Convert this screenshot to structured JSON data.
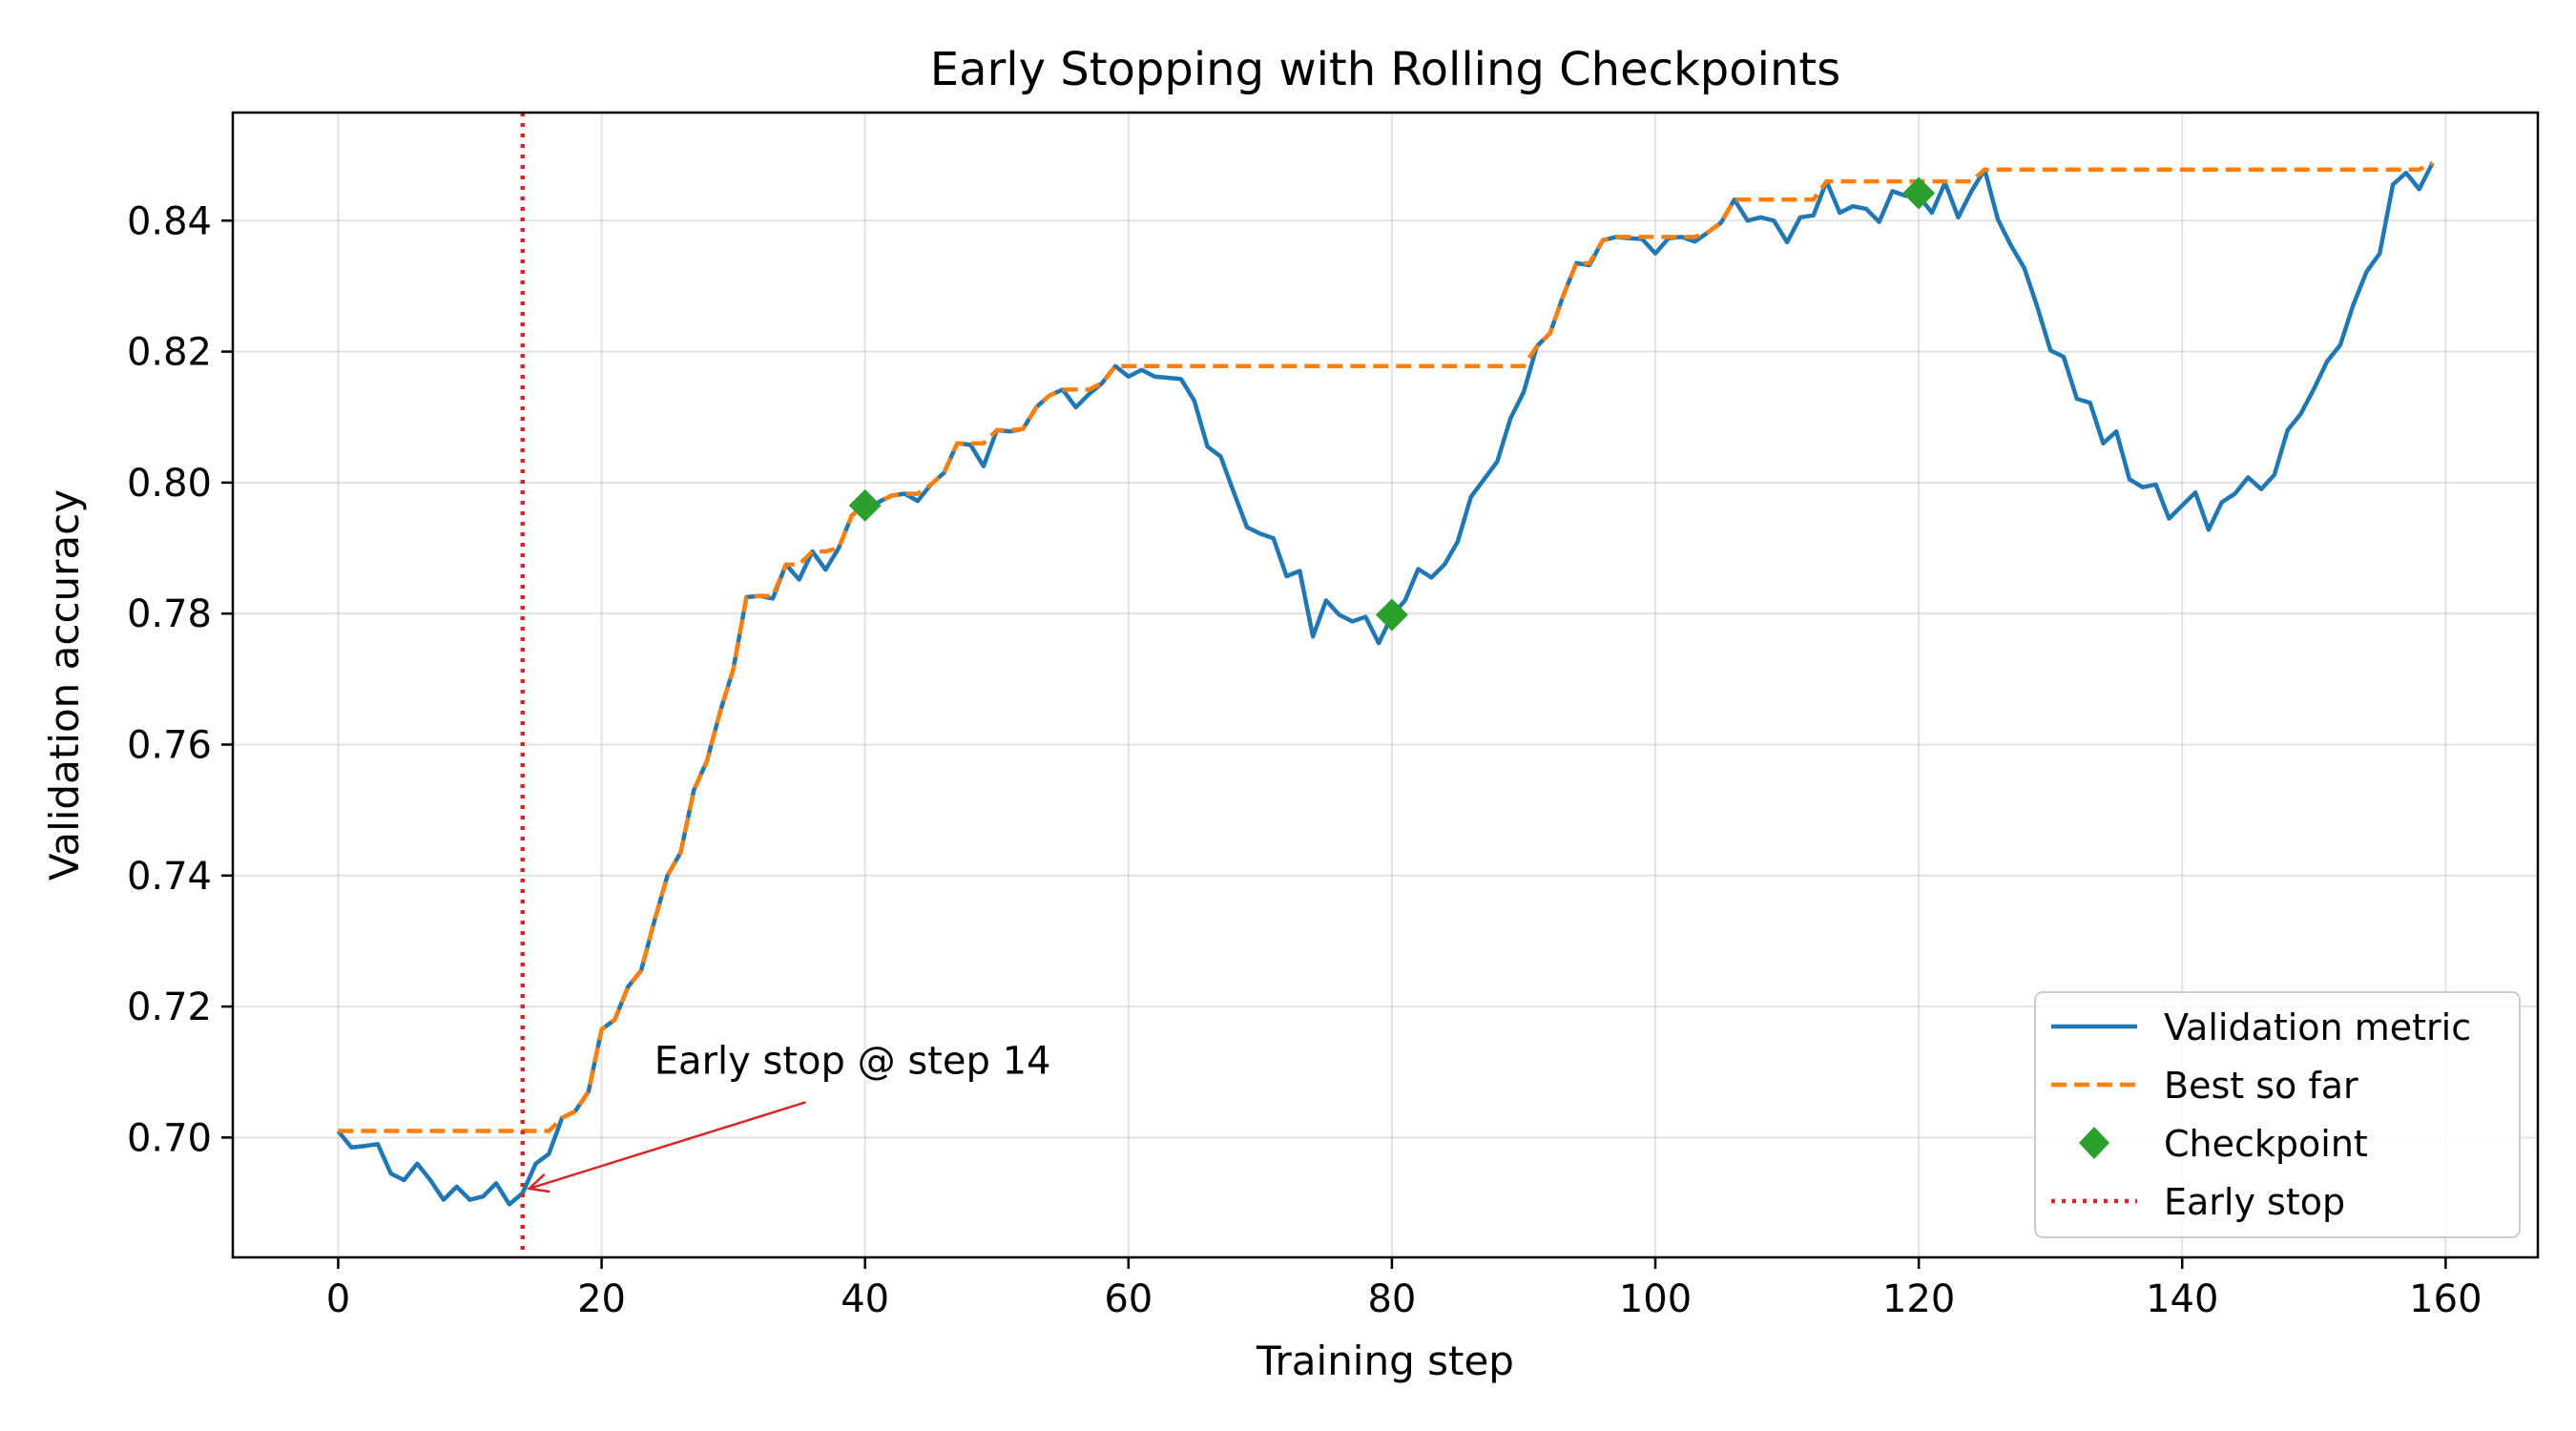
{
  "chart_data": {
    "type": "line",
    "title": "Early Stopping with Rolling Checkpoints",
    "xlabel": "Training step",
    "ylabel": "Validation accuracy",
    "xlim": [
      -8,
      167
    ],
    "ylim": [
      0.6817,
      0.8565
    ],
    "xticks": [
      0,
      20,
      40,
      60,
      80,
      100,
      120,
      140,
      160
    ],
    "yticks": [
      0.7,
      0.72,
      0.74,
      0.76,
      0.78,
      0.8,
      0.82,
      0.84
    ],
    "ytick_labels": [
      "0.70",
      "0.72",
      "0.74",
      "0.76",
      "0.78",
      "0.80",
      "0.82",
      "0.84"
    ],
    "grid": true,
    "legend_position": "lower-right",
    "colors": {
      "validation": "#1f77b4",
      "best": "#ff7f0e",
      "checkpoint": "#2ca02c",
      "early_stop": "#d62728"
    },
    "series": [
      {
        "name": "Validation metric",
        "style": "solid",
        "x": [
          0,
          1,
          2,
          3,
          4,
          5,
          6,
          7,
          8,
          9,
          10,
          11,
          12,
          13,
          14,
          15,
          16,
          17,
          18,
          19,
          20,
          21,
          22,
          23,
          24,
          25,
          26,
          27,
          28,
          29,
          30,
          31,
          32,
          33,
          34,
          35,
          36,
          37,
          38,
          39,
          40,
          41,
          42,
          43,
          44,
          45,
          46,
          47,
          48,
          49,
          50,
          51,
          52,
          53,
          54,
          55,
          56,
          57,
          58,
          59,
          60,
          61,
          62,
          63,
          64,
          65,
          66,
          67,
          68,
          69,
          70,
          71,
          72,
          73,
          74,
          75,
          76,
          77,
          78,
          79,
          80,
          81,
          82,
          83,
          84,
          85,
          86,
          87,
          88,
          89,
          90,
          91,
          92,
          93,
          94,
          95,
          96,
          97,
          98,
          99,
          100,
          101,
          102,
          103,
          104,
          105,
          106,
          107,
          108,
          109,
          110,
          111,
          112,
          113,
          114,
          115,
          116,
          117,
          118,
          119,
          120,
          121,
          122,
          123,
          124,
          125,
          126,
          127,
          128,
          129,
          130,
          131,
          132,
          133,
          134,
          135,
          136,
          137,
          138,
          139,
          140,
          141,
          142,
          143,
          144,
          145,
          146,
          147,
          148,
          149,
          150,
          151,
          152,
          153,
          154,
          155,
          156,
          157,
          158,
          159
        ],
        "y": [
          0.701,
          0.6985,
          0.6987,
          0.699,
          0.6945,
          0.6935,
          0.696,
          0.6935,
          0.6905,
          0.6925,
          0.6905,
          0.691,
          0.693,
          0.6898,
          0.6915,
          0.696,
          0.6975,
          0.703,
          0.704,
          0.707,
          0.7165,
          0.718,
          0.723,
          0.7255,
          0.733,
          0.74,
          0.7435,
          0.753,
          0.7575,
          0.765,
          0.7715,
          0.7825,
          0.7827,
          0.7823,
          0.7875,
          0.7852,
          0.7895,
          0.7867,
          0.79,
          0.795,
          0.7965,
          0.797,
          0.798,
          0.7983,
          0.7972,
          0.7997,
          0.8015,
          0.806,
          0.8058,
          0.8025,
          0.808,
          0.8078,
          0.8082,
          0.8115,
          0.8133,
          0.8142,
          0.8115,
          0.8135,
          0.8152,
          0.8178,
          0.8162,
          0.8172,
          0.8162,
          0.816,
          0.8158,
          0.8125,
          0.8055,
          0.804,
          0.7985,
          0.7932,
          0.7922,
          0.7915,
          0.7857,
          0.7865,
          0.7765,
          0.782,
          0.7798,
          0.7788,
          0.7795,
          0.7755,
          0.7797,
          0.782,
          0.7868,
          0.7855,
          0.7875,
          0.791,
          0.7978,
          0.8005,
          0.8032,
          0.8098,
          0.8138,
          0.8208,
          0.8228,
          0.8285,
          0.8335,
          0.8332,
          0.837,
          0.8375,
          0.8373,
          0.8372,
          0.835,
          0.8373,
          0.8375,
          0.8368,
          0.8382,
          0.8397,
          0.8432,
          0.84,
          0.8405,
          0.84,
          0.8367,
          0.8405,
          0.8408,
          0.846,
          0.8412,
          0.8422,
          0.8418,
          0.8398,
          0.8445,
          0.8438,
          0.8438,
          0.8412,
          0.8458,
          0.8405,
          0.8445,
          0.8478,
          0.8402,
          0.8362,
          0.8328,
          0.8268,
          0.8202,
          0.8192,
          0.8128,
          0.8122,
          0.806,
          0.8078,
          0.8005,
          0.7993,
          0.7997,
          0.7945,
          0.7965,
          0.7985,
          0.7928,
          0.797,
          0.7983,
          0.8008,
          0.799,
          0.8012,
          0.808,
          0.8105,
          0.8143,
          0.8185,
          0.821,
          0.8272,
          0.8322,
          0.835,
          0.8455,
          0.8473,
          0.8448,
          0.8488
        ]
      },
      {
        "name": "Best so far",
        "style": "dashed",
        "x": [
          0,
          1,
          2,
          3,
          4,
          5,
          6,
          7,
          8,
          9,
          10,
          11,
          12,
          13,
          14,
          15,
          16,
          17,
          18,
          19,
          20,
          21,
          22,
          23,
          24,
          25,
          26,
          27,
          28,
          29,
          30,
          31,
          32,
          33,
          34,
          35,
          36,
          37,
          38,
          39,
          40,
          41,
          42,
          43,
          44,
          45,
          46,
          47,
          48,
          49,
          50,
          51,
          52,
          53,
          54,
          55,
          56,
          57,
          58,
          59,
          60,
          61,
          62,
          63,
          64,
          65,
          66,
          67,
          68,
          69,
          70,
          71,
          72,
          73,
          74,
          75,
          76,
          77,
          78,
          79,
          80,
          81,
          82,
          83,
          84,
          85,
          86,
          87,
          88,
          89,
          90,
          91,
          92,
          93,
          94,
          95,
          96,
          97,
          98,
          99,
          100,
          101,
          102,
          103,
          104,
          105,
          106,
          107,
          108,
          109,
          110,
          111,
          112,
          113,
          114,
          115,
          116,
          117,
          118,
          119,
          120,
          121,
          122,
          123,
          124,
          125,
          126,
          127,
          128,
          129,
          130,
          131,
          132,
          133,
          134,
          135,
          136,
          137,
          138,
          139,
          140,
          141,
          142,
          143,
          144,
          145,
          146,
          147,
          148,
          149,
          150,
          151,
          152,
          153,
          154,
          155,
          156,
          157,
          158,
          159
        ],
        "y": [
          0.701,
          0.701,
          0.701,
          0.701,
          0.701,
          0.701,
          0.701,
          0.701,
          0.701,
          0.701,
          0.701,
          0.701,
          0.701,
          0.701,
          0.701,
          0.701,
          0.701,
          0.703,
          0.704,
          0.707,
          0.7165,
          0.718,
          0.723,
          0.7255,
          0.733,
          0.74,
          0.7435,
          0.753,
          0.7575,
          0.765,
          0.7715,
          0.7825,
          0.7827,
          0.7827,
          0.7875,
          0.7875,
          0.7895,
          0.7895,
          0.79,
          0.795,
          0.7965,
          0.797,
          0.798,
          0.7983,
          0.7983,
          0.7997,
          0.8015,
          0.806,
          0.806,
          0.806,
          0.808,
          0.808,
          0.8082,
          0.8115,
          0.8133,
          0.8142,
          0.8142,
          0.8142,
          0.8152,
          0.8178,
          0.8178,
          0.8178,
          0.8178,
          0.8178,
          0.8178,
          0.8178,
          0.8178,
          0.8178,
          0.8178,
          0.8178,
          0.8178,
          0.8178,
          0.8178,
          0.8178,
          0.8178,
          0.8178,
          0.8178,
          0.8178,
          0.8178,
          0.8178,
          0.8178,
          0.8178,
          0.8178,
          0.8178,
          0.8178,
          0.8178,
          0.8178,
          0.8178,
          0.8178,
          0.8178,
          0.8178,
          0.8208,
          0.8228,
          0.8285,
          0.8335,
          0.8335,
          0.837,
          0.8375,
          0.8375,
          0.8375,
          0.8375,
          0.8375,
          0.8375,
          0.8375,
          0.8382,
          0.8397,
          0.8432,
          0.8432,
          0.8432,
          0.8432,
          0.8432,
          0.8432,
          0.8432,
          0.846,
          0.846,
          0.846,
          0.846,
          0.846,
          0.846,
          0.846,
          0.846,
          0.846,
          0.846,
          0.846,
          0.846,
          0.8478,
          0.8478,
          0.8478,
          0.8478,
          0.8478,
          0.8478,
          0.8478,
          0.8478,
          0.8478,
          0.8478,
          0.8478,
          0.8478,
          0.8478,
          0.8478,
          0.8478,
          0.8478,
          0.8478,
          0.8478,
          0.8478,
          0.8478,
          0.8478,
          0.8478,
          0.8478,
          0.8478,
          0.8478,
          0.8478,
          0.8478,
          0.8478,
          0.8478,
          0.8478,
          0.8478,
          0.8478,
          0.8478,
          0.8478,
          0.8488
        ]
      },
      {
        "name": "Checkpoint",
        "style": "marker",
        "x": [
          40,
          80,
          120
        ],
        "y": [
          0.7965,
          0.7798,
          0.8442
        ]
      },
      {
        "name": "Early stop",
        "style": "dotted-vertical",
        "x": [
          14
        ]
      }
    ],
    "annotation": {
      "text": "Early stop @ step 14",
      "text_x": 24,
      "text_y": 0.7118,
      "arrow_x": 14.5,
      "arrow_y": 0.6922
    }
  }
}
